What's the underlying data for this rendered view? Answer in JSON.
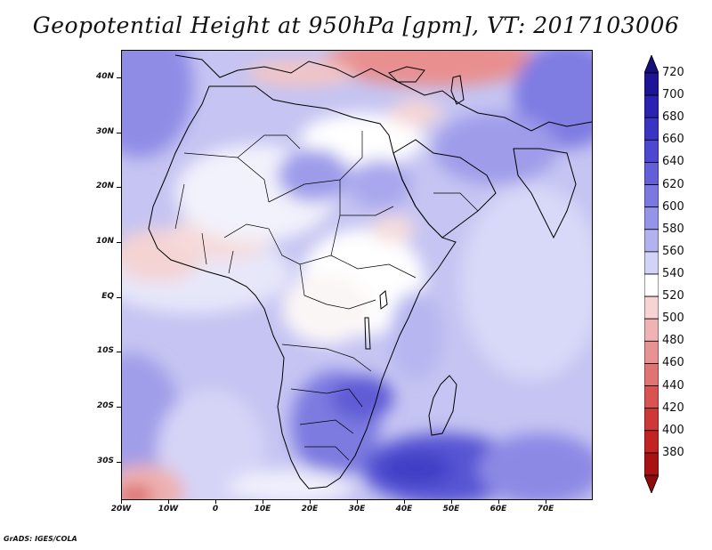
{
  "title": "Geopotential Height at 950hPa [gpm], VT: 2017103006",
  "footer": "GrADS: IGES/COLA",
  "map": {
    "lon_range": [
      -20,
      80
    ],
    "lat_range": [
      -37,
      45
    ],
    "lat_labels": [
      "40N",
      "30N",
      "20N",
      "10N",
      "EQ",
      "10S",
      "20S",
      "30S"
    ],
    "lat_values": [
      40,
      30,
      20,
      10,
      0,
      -10,
      -20,
      -30
    ],
    "lon_labels": [
      "20W",
      "10W",
      "0",
      "10E",
      "20E",
      "30E",
      "40E",
      "50E",
      "60E",
      "70E"
    ],
    "lon_values": [
      -20,
      -10,
      0,
      10,
      20,
      30,
      40,
      50,
      60,
      70
    ]
  },
  "colorbar": {
    "labels": [
      "720",
      "700",
      "680",
      "660",
      "640",
      "620",
      "600",
      "580",
      "560",
      "540",
      "520",
      "500",
      "480",
      "460",
      "440",
      "420",
      "400",
      "380"
    ],
    "colors": [
      "#1e1496",
      "#2a22b0",
      "#3a34c4",
      "#4c48cf",
      "#625fd9",
      "#7b79e1",
      "#9694e8",
      "#b3b2ef",
      "#d3d3f6",
      "#ffffff",
      "#f7d3d3",
      "#f0b3b3",
      "#e89393",
      "#e07373",
      "#d95353",
      "#cf3838",
      "#c22424",
      "#a81212"
    ]
  }
}
